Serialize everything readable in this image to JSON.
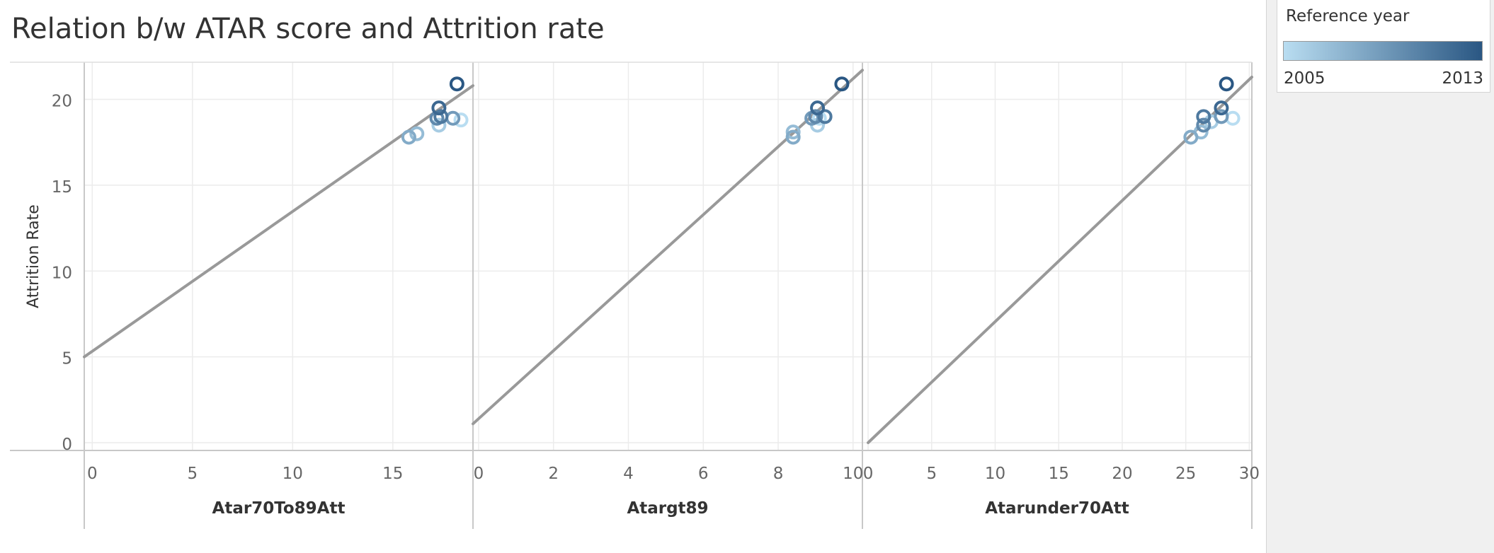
{
  "chart_data": {
    "type": "scatter",
    "title": "Relation b/w ATAR score and Attrition rate",
    "ylabel": "Attrition Rate",
    "ylim": [
      0,
      22
    ],
    "yticks": [
      0,
      5,
      10,
      15,
      20
    ],
    "legend": {
      "title": "Reference year",
      "min_label": "2005",
      "max_label": "2013",
      "color_min": "#b9ddf1",
      "color_max": "#2a5783",
      "placement": "top-right"
    },
    "trend_color": "#999999",
    "panels": [
      {
        "xlabel": "Atar70To89Att",
        "xlim": [
          -0.4,
          19.0
        ],
        "xticks": [
          0,
          5,
          10,
          15
        ],
        "trend": {
          "x": [
            -0.4,
            19.0
          ],
          "y": [
            5.0,
            20.8
          ]
        },
        "points": [
          {
            "x": 18.4,
            "y": 18.8,
            "year": 2005
          },
          {
            "x": 17.3,
            "y": 18.5,
            "year": 2006
          },
          {
            "x": 16.2,
            "y": 18.0,
            "year": 2007
          },
          {
            "x": 15.8,
            "y": 17.8,
            "year": 2008
          },
          {
            "x": 18.0,
            "y": 18.9,
            "year": 2009
          },
          {
            "x": 17.2,
            "y": 18.9,
            "year": 2010
          },
          {
            "x": 17.4,
            "y": 19.0,
            "year": 2011
          },
          {
            "x": 17.3,
            "y": 19.5,
            "year": 2012
          },
          {
            "x": 18.2,
            "y": 20.9,
            "year": 2013
          }
        ]
      },
      {
        "xlabel": "Atargt89",
        "xlim": [
          -0.15,
          10.25
        ],
        "xticks": [
          0,
          2,
          4,
          6,
          8,
          10
        ],
        "trend": {
          "x": [
            -0.15,
            10.25
          ],
          "y": [
            1.1,
            21.7
          ]
        },
        "points": [
          {
            "x": 9.1,
            "y": 18.9,
            "year": 2005
          },
          {
            "x": 9.05,
            "y": 18.5,
            "year": 2006
          },
          {
            "x": 8.4,
            "y": 18.1,
            "year": 2007
          },
          {
            "x": 8.4,
            "y": 17.8,
            "year": 2008
          },
          {
            "x": 8.9,
            "y": 18.9,
            "year": 2009
          },
          {
            "x": 9.0,
            "y": 19.0,
            "year": 2010
          },
          {
            "x": 9.25,
            "y": 19.0,
            "year": 2011
          },
          {
            "x": 9.05,
            "y": 19.5,
            "year": 2012
          },
          {
            "x": 9.7,
            "y": 20.9,
            "year": 2013
          }
        ]
      },
      {
        "xlabel": "Atarunder70Att",
        "xlim": [
          -0.45,
          30.2
        ],
        "xticks": [
          0,
          5,
          10,
          15,
          20,
          25,
          30
        ],
        "trend": {
          "x": [
            0.0,
            30.2
          ],
          "y": [
            0.0,
            21.3
          ]
        },
        "points": [
          {
            "x": 28.7,
            "y": 18.9,
            "year": 2005
          },
          {
            "x": 27.0,
            "y": 18.7,
            "year": 2006
          },
          {
            "x": 26.2,
            "y": 18.1,
            "year": 2007
          },
          {
            "x": 25.4,
            "y": 17.8,
            "year": 2008
          },
          {
            "x": 27.8,
            "y": 19.0,
            "year": 2009
          },
          {
            "x": 26.4,
            "y": 18.5,
            "year": 2010
          },
          {
            "x": 26.4,
            "y": 19.0,
            "year": 2011
          },
          {
            "x": 27.8,
            "y": 19.5,
            "year": 2012
          },
          {
            "x": 28.2,
            "y": 20.9,
            "year": 2013
          }
        ]
      }
    ]
  }
}
